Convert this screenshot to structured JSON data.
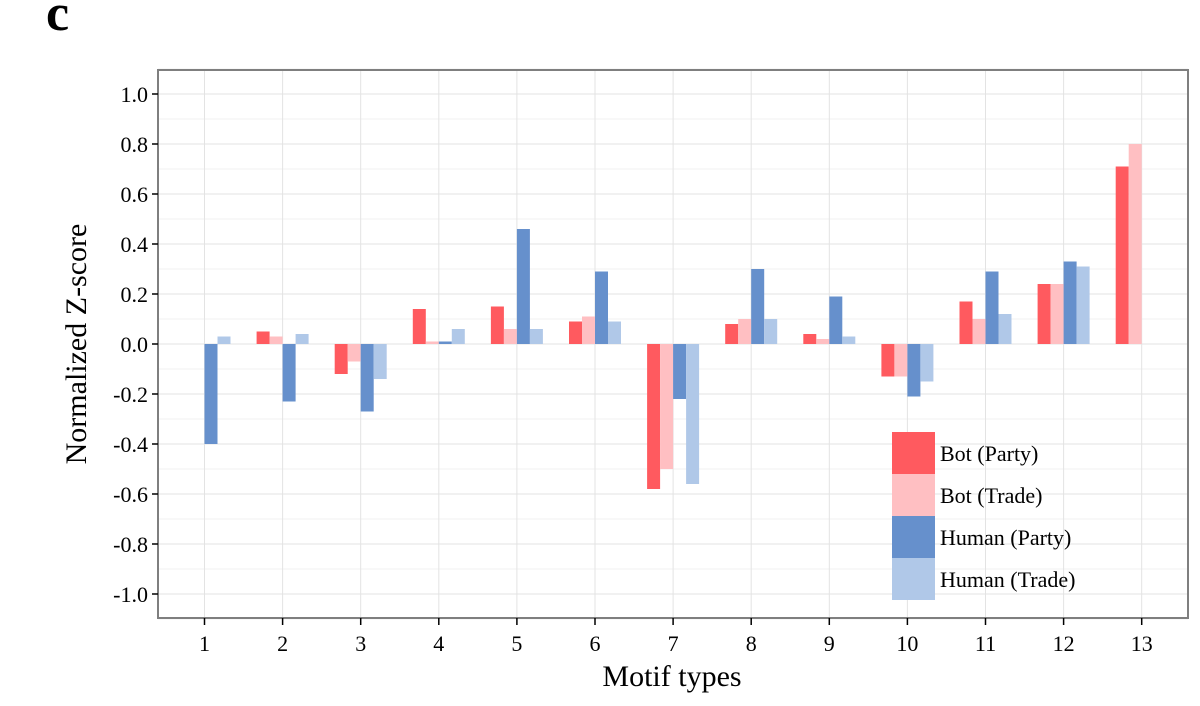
{
  "panel_label": "c",
  "chart_data": {
    "type": "bar",
    "xlabel": "Motif types",
    "ylabel": "Normalized Z-score",
    "ylim": [
      -1.1,
      1.1
    ],
    "yticks": [
      "1.0",
      "0.8",
      "0.6",
      "0.4",
      "0.2",
      "0.0",
      "-0.2",
      "-0.4",
      "-0.6",
      "-0.8",
      "-1.0"
    ],
    "ytick_values": [
      1.0,
      0.8,
      0.6,
      0.4,
      0.2,
      0.0,
      -0.2,
      -0.4,
      -0.6,
      -0.8,
      -1.0
    ],
    "categories": [
      "1",
      "2",
      "3",
      "4",
      "5",
      "6",
      "7",
      "8",
      "9",
      "10",
      "11",
      "12",
      "13"
    ],
    "grid": true,
    "legend_position": "bottom-right",
    "series": [
      {
        "name": "Bot (Party)",
        "color": "#ff5a5f",
        "values": [
          0,
          0.05,
          -0.12,
          0.14,
          0.15,
          0.09,
          -0.58,
          0.08,
          0.04,
          -0.13,
          0.17,
          0.24,
          0.71
        ]
      },
      {
        "name": "Bot (Trade)",
        "color": "#ffbfc2",
        "values": [
          0,
          0.03,
          -0.07,
          0.01,
          0.06,
          0.11,
          -0.5,
          0.1,
          0.02,
          -0.13,
          0.1,
          0.24,
          0.8
        ]
      },
      {
        "name": "Human (Party)",
        "color": "#6690cc",
        "values": [
          -0.4,
          -0.23,
          -0.27,
          0.01,
          0.46,
          0.29,
          -0.22,
          0.3,
          0.19,
          -0.21,
          0.29,
          0.33,
          0
        ]
      },
      {
        "name": "Human (Trade)",
        "color": "#b0c8e8",
        "values": [
          0.03,
          0.04,
          -0.14,
          0.06,
          0.06,
          0.09,
          -0.56,
          0.1,
          0.03,
          -0.15,
          0.12,
          0.31,
          0
        ]
      }
    ]
  }
}
